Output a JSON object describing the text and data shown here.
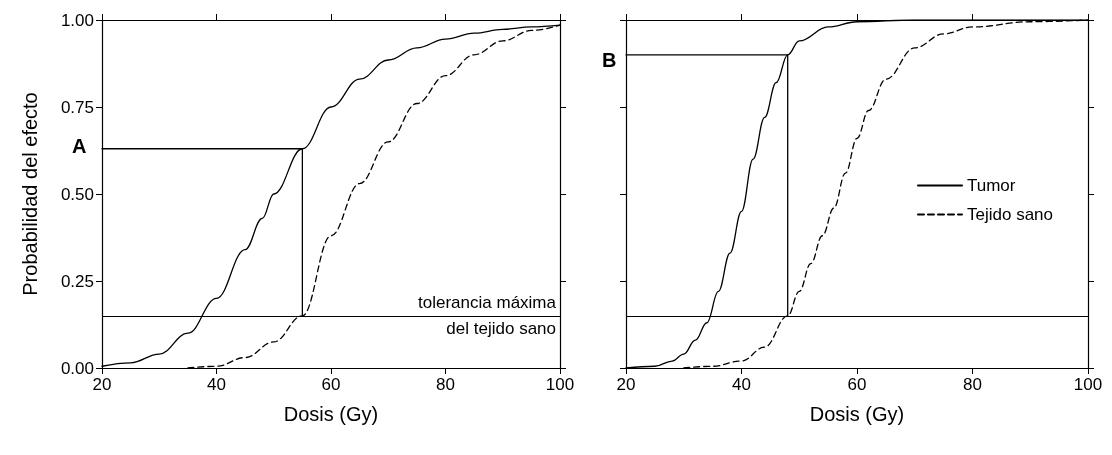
{
  "chart_data": [
    {
      "type": "line",
      "ylabel": "Probabilidad del efecto",
      "xlabel": "Dosis (Gy)",
      "annotations": [
        "A"
      ],
      "marker": "none",
      "grid": false,
      "legend": false,
      "xlim": [
        20,
        100
      ],
      "xticks": [
        20,
        40,
        60,
        80,
        100
      ],
      "ylim": [
        0,
        1
      ],
      "yticks": [
        {
          "value": 0,
          "label": "0.00"
        },
        {
          "value": 0.25,
          "label": "0.25"
        },
        {
          "value": 0.5,
          "label": "0.50"
        },
        {
          "value": 0.75,
          "label": "0.75"
        },
        {
          "value": 1,
          "label": "1.00"
        }
      ],
      "ref_lines": [
        {
          "axis": "y",
          "value": 0.15,
          "label": "tolerancia máxima\ndel tejido sano",
          "color": "#000000",
          "line_style": "solid"
        }
      ],
      "series": [
        {
          "color": "#000000",
          "line_style": "solid",
          "x": [
            20,
            25,
            30,
            35,
            40,
            45,
            48,
            50,
            55,
            60,
            65,
            70,
            75,
            80,
            85,
            90,
            95,
            100
          ],
          "values": [
            0.005,
            0.015,
            0.04,
            0.1,
            0.2,
            0.34,
            0.43,
            0.5,
            0.63,
            0.75,
            0.83,
            0.885,
            0.92,
            0.945,
            0.962,
            0.973,
            0.98,
            0.985
          ]
        },
        {
          "color": "#000000",
          "line_style": "dashed",
          "x": [
            35,
            40,
            45,
            50,
            55,
            60,
            65,
            70,
            75,
            80,
            85,
            90,
            95,
            100
          ],
          "values": [
            0,
            0.005,
            0.03,
            0.075,
            0.15,
            0.38,
            0.53,
            0.65,
            0.76,
            0.84,
            0.9,
            0.94,
            0.97,
            0.985
          ]
        },
        {
          "type": "line",
          "color": "#000000",
          "line_style": "solid",
          "x": [
            20,
            55,
            55
          ],
          "values": [
            0.63,
            0.63,
            0.15
          ]
        }
      ]
    },
    {
      "type": "line",
      "xlabel": "Dosis (Gy)",
      "annotations": [
        "B"
      ],
      "marker": "none",
      "grid": false,
      "legend": "right",
      "tick_labels": "x",
      "xlim": [
        20,
        100
      ],
      "xticks": [
        20,
        40,
        60,
        80,
        100
      ],
      "ylim": [
        0,
        1
      ],
      "yticks": [
        {
          "value": 0,
          "label": null
        },
        {
          "value": 0.25,
          "label": null
        },
        {
          "value": 0.5,
          "label": null
        },
        {
          "value": 0.75,
          "label": null
        },
        {
          "value": 1,
          "label": null
        }
      ],
      "ref_lines": [
        {
          "axis": "y",
          "value": 0.15,
          "color": "#000000",
          "line_style": "solid"
        }
      ],
      "series": [
        {
          "name": "Tumor",
          "color": "#000000",
          "line_style": "solid",
          "x": [
            20,
            25,
            28,
            30,
            32,
            34,
            36,
            38,
            40,
            42,
            44,
            46,
            48,
            50,
            55,
            60,
            70,
            100
          ],
          "values": [
            0,
            0.005,
            0.02,
            0.04,
            0.08,
            0.13,
            0.22,
            0.33,
            0.45,
            0.6,
            0.72,
            0.82,
            0.9,
            0.94,
            0.98,
            0.995,
            1,
            1
          ]
        },
        {
          "name": "Tejido sano",
          "color": "#000000",
          "line_style": "dashed",
          "x": [
            30,
            35,
            40,
            44,
            48,
            50,
            52,
            54,
            56,
            58,
            60,
            62,
            65,
            70,
            75,
            80,
            90,
            100
          ],
          "values": [
            0,
            0.005,
            0.02,
            0.06,
            0.15,
            0.22,
            0.3,
            0.38,
            0.46,
            0.56,
            0.66,
            0.74,
            0.83,
            0.92,
            0.96,
            0.98,
            0.995,
            1
          ]
        },
        {
          "type": "line",
          "color": "#000000",
          "line_style": "solid",
          "x": [
            20,
            48,
            48
          ],
          "values": [
            0.9,
            0.9,
            0.15
          ]
        }
      ]
    }
  ]
}
